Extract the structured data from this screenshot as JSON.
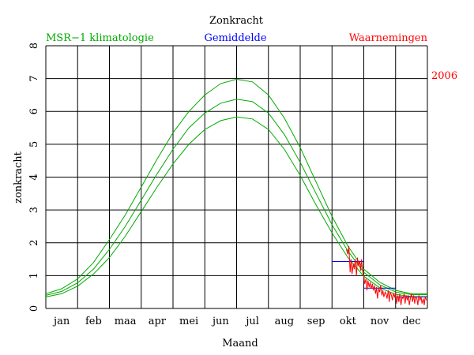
{
  "chart_data": {
    "type": "line",
    "title": "Zonkracht",
    "xlabel": "Maand",
    "ylabel": "zonkracht",
    "year_label": "2006",
    "ylim": [
      0,
      8
    ],
    "xlim": [
      0,
      12
    ],
    "grid": true,
    "yticks": [
      "0",
      "1",
      "2",
      "3",
      "4",
      "5",
      "6",
      "7",
      "8"
    ],
    "months": [
      "jan",
      "feb",
      "maa",
      "apr",
      "mei",
      "jun",
      "jul",
      "aug",
      "sep",
      "okt",
      "nov",
      "dec"
    ],
    "legend": {
      "climatology": "MSR−1 klimatologie",
      "average": "Gemiddelde",
      "observations": "Waarnemingen"
    },
    "colors": {
      "climatology": "#00aa00",
      "average": "#0000ff",
      "observations": "#ff0000",
      "grid": "#000000"
    },
    "series": [
      {
        "name": "MSR-1 klimatologie (bovengrens)",
        "color": "#00aa00",
        "x": [
          0,
          0.5,
          1,
          1.5,
          2,
          2.5,
          3,
          3.5,
          4,
          4.5,
          5,
          5.5,
          6,
          6.5,
          7,
          7.5,
          8,
          8.5,
          9,
          9.5,
          10,
          10.5,
          11,
          11.5,
          12
        ],
        "values": [
          0.45,
          0.6,
          0.9,
          1.4,
          2.1,
          2.85,
          3.7,
          4.55,
          5.35,
          6.0,
          6.5,
          6.85,
          6.98,
          6.9,
          6.5,
          5.8,
          4.9,
          3.85,
          2.8,
          1.9,
          1.2,
          0.8,
          0.55,
          0.45,
          0.45
        ]
      },
      {
        "name": "MSR-1 klimatologie (midden)",
        "color": "#00aa00",
        "x": [
          0,
          0.5,
          1,
          1.5,
          2,
          2.5,
          3,
          3.5,
          4,
          4.5,
          5,
          5.5,
          6,
          6.5,
          7,
          7.5,
          8,
          8.5,
          9,
          9.5,
          10,
          10.5,
          11,
          11.5,
          12
        ],
        "values": [
          0.4,
          0.52,
          0.78,
          1.2,
          1.8,
          2.5,
          3.3,
          4.1,
          4.85,
          5.5,
          5.95,
          6.25,
          6.37,
          6.3,
          5.95,
          5.3,
          4.45,
          3.5,
          2.55,
          1.75,
          1.1,
          0.72,
          0.5,
          0.42,
          0.42
        ]
      },
      {
        "name": "MSR-1 klimatologie (ondergrens)",
        "color": "#00aa00",
        "x": [
          0,
          0.5,
          1,
          1.5,
          2,
          2.5,
          3,
          3.5,
          4,
          4.5,
          5,
          5.5,
          6,
          6.5,
          7,
          7.5,
          8,
          8.5,
          9,
          9.5,
          10,
          10.5,
          11,
          11.5,
          12
        ],
        "values": [
          0.35,
          0.45,
          0.68,
          1.05,
          1.55,
          2.2,
          2.95,
          3.7,
          4.4,
          5.0,
          5.45,
          5.72,
          5.83,
          5.77,
          5.45,
          4.85,
          4.05,
          3.15,
          2.3,
          1.55,
          0.98,
          0.63,
          0.43,
          0.36,
          0.36
        ]
      },
      {
        "name": "Gemiddelde",
        "color": "#0000ff",
        "segments": [
          {
            "x": [
              9.0,
              10.0
            ],
            "value": 1.43
          },
          {
            "x": [
              10.0,
              11.0
            ],
            "value": 0.62
          },
          {
            "x": [
              11.0,
              12.0
            ],
            "value": 0.35
          }
        ]
      },
      {
        "name": "Waarnemingen",
        "color": "#ff0000",
        "x": [
          9.45,
          9.5,
          9.53,
          9.57,
          9.6,
          9.63,
          9.67,
          9.7,
          9.73,
          9.77,
          9.8,
          9.83,
          9.87,
          9.9,
          9.93,
          9.97,
          10.0,
          10.03,
          10.07,
          10.1,
          10.13,
          10.17,
          10.2,
          10.23,
          10.27,
          10.3,
          10.33,
          10.37,
          10.4,
          10.43,
          10.47,
          10.5,
          10.53,
          10.57,
          10.6,
          10.63,
          10.67,
          10.7,
          10.73,
          10.77,
          10.8,
          10.83,
          10.87,
          10.9,
          10.93,
          10.97,
          11.0,
          11.03,
          11.07,
          11.1,
          11.13,
          11.17,
          11.2,
          11.23,
          11.27,
          11.3,
          11.33,
          11.37,
          11.4,
          11.43,
          11.47,
          11.5,
          11.53,
          11.57,
          11.6,
          11.63,
          11.67,
          11.7,
          11.73,
          11.77,
          11.8,
          11.83,
          11.87,
          11.9,
          11.93,
          11.97
        ],
        "values": [
          1.8,
          1.65,
          1.9,
          1.1,
          1.5,
          1.05,
          1.35,
          1.2,
          1.5,
          1.0,
          1.55,
          1.3,
          1.45,
          1.15,
          1.5,
          1.1,
          1.0,
          0.75,
          0.9,
          0.55,
          0.85,
          0.65,
          0.8,
          0.6,
          0.75,
          0.55,
          0.7,
          0.45,
          0.65,
          0.3,
          0.6,
          0.5,
          0.7,
          0.4,
          0.55,
          0.35,
          0.5,
          0.45,
          0.3,
          0.55,
          0.2,
          0.5,
          0.4,
          0.25,
          0.45,
          0.35,
          0.5,
          0.15,
          0.4,
          0.2,
          0.45,
          0.1,
          0.35,
          0.3,
          0.45,
          0.15,
          0.4,
          0.25,
          0.4,
          0.1,
          0.35,
          0.45,
          0.2,
          0.4,
          0.15,
          0.35,
          0.3,
          0.1,
          0.4,
          0.25,
          0.35,
          0.15,
          0.3,
          0.1,
          0.35,
          0.25
        ]
      }
    ]
  }
}
